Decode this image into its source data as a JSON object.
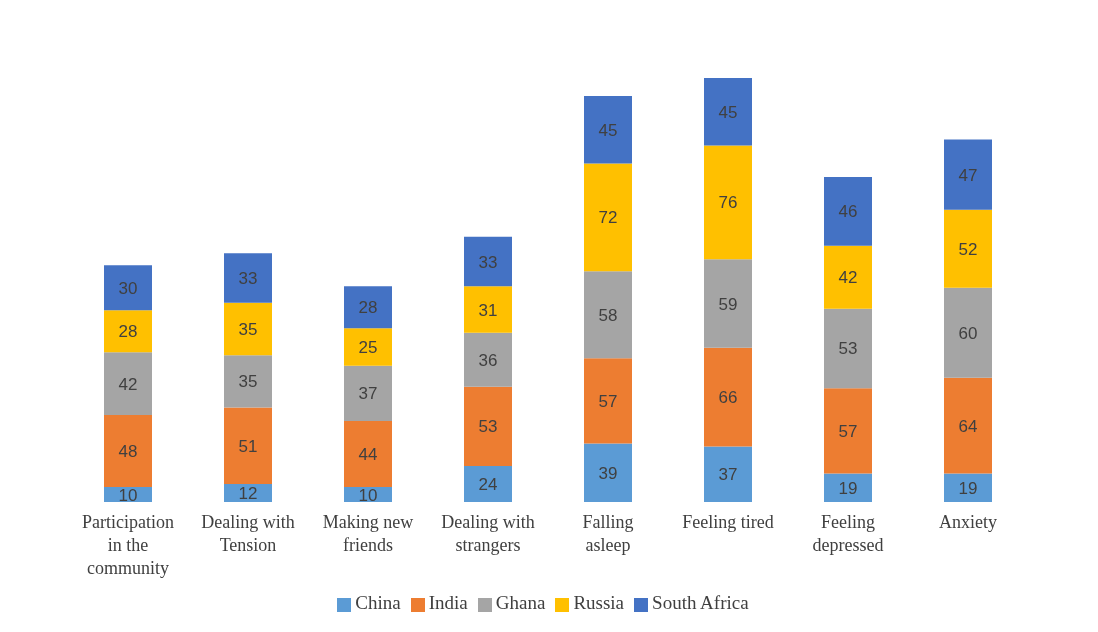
{
  "chart_data": {
    "type": "bar",
    "stacked": true,
    "data_labels": true,
    "legend": "bottom",
    "grid": false,
    "categories": [
      "Participation in the community",
      "Dealing with Tension",
      "Making new friends",
      "Dealing with strangers",
      "Falling asleep",
      "Feeling tired",
      "Feeling depressed",
      "Anxiety"
    ],
    "series": [
      {
        "name": "China",
        "color": "#5b9bd5",
        "values": [
          10,
          12,
          10,
          24,
          39,
          37,
          19,
          19
        ]
      },
      {
        "name": "India",
        "color": "#ed7d31",
        "values": [
          48,
          51,
          44,
          53,
          57,
          66,
          57,
          64
        ]
      },
      {
        "name": "Ghana",
        "color": "#a5a5a5",
        "values": [
          42,
          35,
          37,
          36,
          58,
          59,
          53,
          60
        ]
      },
      {
        "name": "Russia",
        "color": "#ffc000",
        "values": [
          28,
          35,
          25,
          31,
          72,
          76,
          42,
          52
        ]
      },
      {
        "name": "South Africa",
        "color": "#4472c4",
        "values": [
          30,
          33,
          28,
          33,
          45,
          45,
          46,
          47
        ]
      }
    ]
  }
}
